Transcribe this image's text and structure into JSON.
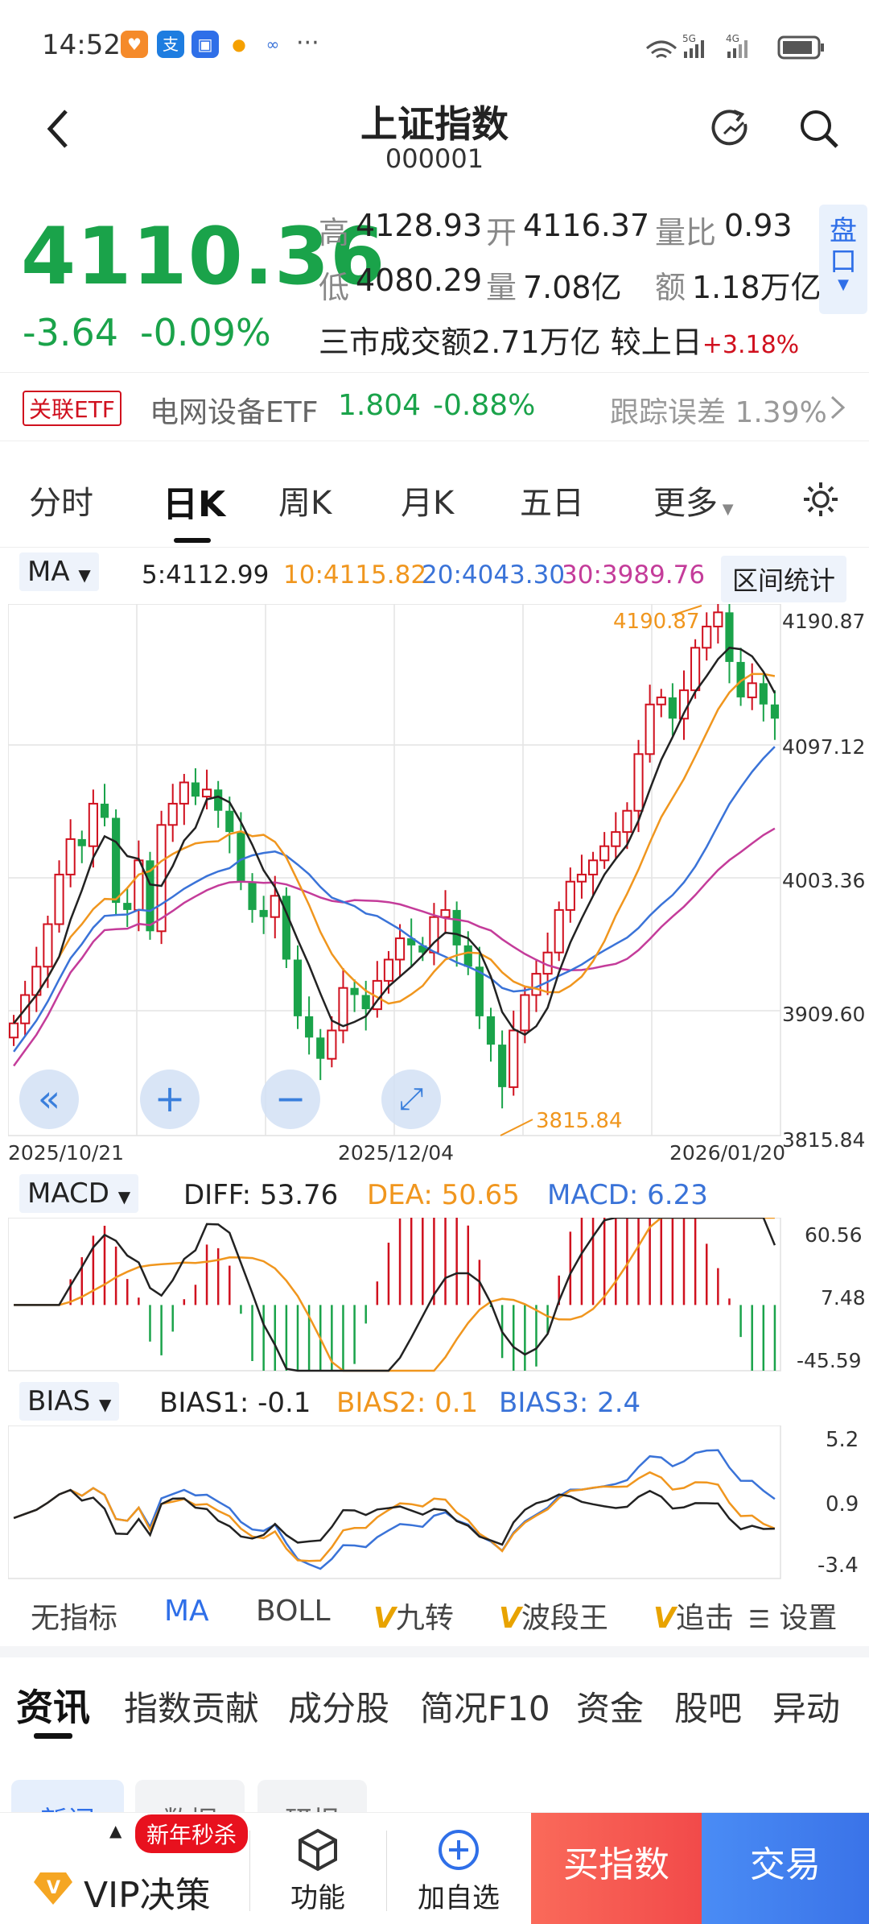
{
  "status": {
    "time": "14:52",
    "more": "···",
    "signal1": "5G",
    "signal2": "4G"
  },
  "header": {
    "title": "上证指数",
    "code": "000001"
  },
  "quote": {
    "price": "4110.36",
    "change": "-3.64",
    "pct": "-0.09%",
    "high_label": "高",
    "high": "4128.93",
    "open_label": "开",
    "open": "4116.37",
    "ratio_label": "量比",
    "ratio": "0.93",
    "low_label": "低",
    "low": "4080.29",
    "vol_label": "量",
    "vol": "7.08亿",
    "amt_label": "额",
    "amt": "1.18万亿",
    "market": "三市成交额",
    "market_val": "2.71万亿",
    "compare": "较上日",
    "compare_val": "+3.18%",
    "pankou": "盘口"
  },
  "etf": {
    "tag": "关联ETF",
    "name": "电网设备ETF",
    "price": "1.804",
    "pct": "-0.88%",
    "track": "跟踪误差 1.39%"
  },
  "tabs": [
    "分时",
    "日K",
    "周K",
    "月K",
    "五日",
    "更多"
  ],
  "ma": {
    "label": "MA",
    "ma5": "5:4112.99",
    "ma10": "10:4115.82",
    "ma20": "20:4043.30",
    "ma30": "30:3989.76",
    "range": "区间统计"
  },
  "kchart": {
    "y_labels": [
      "4190.87",
      "4097.12",
      "4003.36",
      "3909.60",
      "3815.84"
    ],
    "max_label": "4190.87",
    "min_label": "3815.84",
    "dates": [
      "2025/10/21",
      "2025/12/04",
      "2026/01/20"
    ]
  },
  "macd": {
    "label": "MACD",
    "diff": "DIFF: 53.76",
    "dea": "DEA: 50.65",
    "macd": "MACD: 6.23",
    "y_labels": [
      "60.56",
      "7.48",
      "-45.59"
    ]
  },
  "bias": {
    "label": "BIAS",
    "b1": "BIAS1: -0.1",
    "b2": "BIAS2: 0.1",
    "b3": "BIAS3: 2.4",
    "y_labels": [
      "5.2",
      "0.9",
      "-3.4"
    ]
  },
  "ind_tabs": {
    "none": "无指标",
    "ma": "MA",
    "boll": "BOLL",
    "jz": "九转",
    "bdw": "波段王",
    "zj": "追击",
    "set": "设置"
  },
  "news_tabs": [
    "资讯",
    "指数贡献",
    "成分股",
    "简况F10",
    "资金",
    "股吧",
    "异动"
  ],
  "sub_tabs": [
    "新闻",
    "数据",
    "研报"
  ],
  "bottom": {
    "promo": "新年秒杀",
    "vip": "VIP决策",
    "func": "功能",
    "add": "加自选",
    "buy": "买指数",
    "trade": "交易"
  },
  "colors": {
    "up": "#d0101e",
    "down": "#1aa34a",
    "ma5": "#222222",
    "ma10": "#f0961e",
    "ma20": "#3a73d8",
    "ma30": "#c43c9a"
  },
  "chart_data": {
    "type": "candlestick",
    "title": "上证指数 日K",
    "ylim": [
      3815.84,
      4190.87
    ],
    "x_range": [
      "2025/10/21",
      "2026/01/20"
    ],
    "last_close": 4110.36,
    "ma": {
      "MA5": 4112.99,
      "MA10": 4115.82,
      "MA20": 4043.3,
      "MA30": 3989.76
    },
    "high_marker": 4190.87,
    "low_marker": 3815.84
  }
}
